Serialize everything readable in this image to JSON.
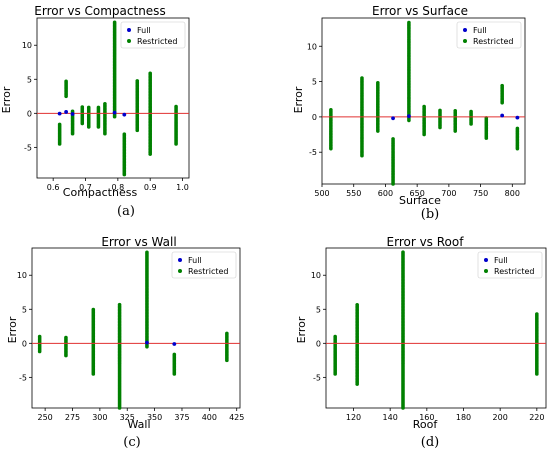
{
  "chart_data": [
    {
      "type": "scatter",
      "panel_label": "(a)",
      "title": "Error vs Compactness",
      "xlabel": "Compactness",
      "ylabel": "Error",
      "xlim": [
        0.55,
        1.02
      ],
      "ylim": [
        -9.5,
        14
      ],
      "xticks": [
        0.6,
        0.7,
        0.8,
        0.9,
        1.0
      ],
      "xtick_labels": [
        "0.6",
        "0.7",
        "0.8",
        "0.9",
        "1.0"
      ],
      "yticks": [
        -5,
        0,
        5,
        10
      ],
      "ytick_labels": [
        "-5",
        "0",
        "5",
        "10"
      ],
      "legend": {
        "position": "top-right",
        "entries": [
          "Full",
          "Restricted"
        ]
      },
      "series": [
        {
          "name": "Full",
          "color": "#0000cc",
          "points": [
            [
              0.62,
              -0.05
            ],
            [
              0.64,
              0.2
            ],
            [
              0.66,
              -0.1
            ],
            [
              0.79,
              0.1
            ],
            [
              0.82,
              -0.2
            ]
          ]
        },
        {
          "name": "Restricted",
          "color": "#008000",
          "columns": [
            {
              "x": 0.62,
              "min": -4.5,
              "max": -1.5
            },
            {
              "x": 0.64,
              "min": 2.5,
              "max": 4.8
            },
            {
              "x": 0.66,
              "min": -3.0,
              "max": 0.5
            },
            {
              "x": 0.69,
              "min": -1.5,
              "max": 1.0
            },
            {
              "x": 0.71,
              "min": -2.0,
              "max": 1.0
            },
            {
              "x": 0.74,
              "min": -2.0,
              "max": 1.0
            },
            {
              "x": 0.76,
              "min": -3.0,
              "max": 1.5
            },
            {
              "x": 0.79,
              "min": -0.5,
              "max": 13.5
            },
            {
              "x": 0.82,
              "min": -9.0,
              "max": -3.0
            },
            {
              "x": 0.86,
              "min": -2.5,
              "max": 4.8
            },
            {
              "x": 0.9,
              "min": -6.0,
              "max": 6.0
            },
            {
              "x": 0.98,
              "min": -4.5,
              "max": 1.0
            }
          ]
        }
      ],
      "reference_line": {
        "y": 0,
        "color": "#e03030"
      }
    },
    {
      "type": "scatter",
      "panel_label": "(b)",
      "title": "Error vs Surface",
      "xlabel": "Surface",
      "ylabel": "Error",
      "xlim": [
        500,
        820
      ],
      "ylim": [
        -9.5,
        14
      ],
      "xticks": [
        500,
        550,
        600,
        650,
        700,
        750,
        800
      ],
      "xtick_labels": [
        "500",
        "550",
        "600",
        "650",
        "700",
        "750",
        "800"
      ],
      "yticks": [
        -5,
        0,
        5,
        10
      ],
      "ytick_labels": [
        "-5",
        "0",
        "5",
        "10"
      ],
      "legend": {
        "position": "top-right",
        "entries": [
          "Full",
          "Restricted"
        ]
      },
      "series": [
        {
          "name": "Full",
          "color": "#0000cc",
          "points": [
            [
              612,
              -0.2
            ],
            [
              637,
              0.1
            ],
            [
              784,
              0.2
            ],
            [
              808,
              -0.1
            ]
          ]
        },
        {
          "name": "Restricted",
          "color": "#008000",
          "columns": [
            {
              "x": 514,
              "min": -4.5,
              "max": 1.0
            },
            {
              "x": 563,
              "min": -5.5,
              "max": 5.5
            },
            {
              "x": 588,
              "min": -2.0,
              "max": 5.0
            },
            {
              "x": 612,
              "min": -9.5,
              "max": -3.0
            },
            {
              "x": 637,
              "min": -0.5,
              "max": 13.5
            },
            {
              "x": 661,
              "min": -2.5,
              "max": 1.5
            },
            {
              "x": 686,
              "min": -1.5,
              "max": 1.0
            },
            {
              "x": 710,
              "min": -2.0,
              "max": 1.0
            },
            {
              "x": 735,
              "min": -1.0,
              "max": 0.8
            },
            {
              "x": 759,
              "min": -3.0,
              "max": 0.0
            },
            {
              "x": 784,
              "min": 2.0,
              "max": 4.5
            },
            {
              "x": 808,
              "min": -4.5,
              "max": -1.5
            }
          ]
        }
      ],
      "reference_line": {
        "y": 0,
        "color": "#e03030"
      }
    },
    {
      "type": "scatter",
      "panel_label": "(c)",
      "title": "Error vs Wall",
      "xlabel": "Wall",
      "ylabel": "Error",
      "xlim": [
        238,
        428
      ],
      "ylim": [
        -9.5,
        14
      ],
      "xticks": [
        250,
        275,
        300,
        325,
        350,
        375,
        400,
        425
      ],
      "xtick_labels": [
        "250",
        "275",
        "300",
        "325",
        "350",
        "375",
        "400",
        "425"
      ],
      "yticks": [
        -5,
        0,
        5,
        10
      ],
      "ytick_labels": [
        "-5",
        "0",
        "5",
        "10"
      ],
      "legend": {
        "position": "top-right",
        "entries": [
          "Full",
          "Restricted"
        ]
      },
      "series": [
        {
          "name": "Full",
          "color": "#0000cc",
          "points": [
            [
              343,
              0.1
            ],
            [
              368,
              -0.1
            ]
          ]
        },
        {
          "name": "Restricted",
          "color": "#008000",
          "columns": [
            {
              "x": 245,
              "min": -1.2,
              "max": 1.0
            },
            {
              "x": 269,
              "min": -1.8,
              "max": 1.0
            },
            {
              "x": 294,
              "min": -4.5,
              "max": 5.0
            },
            {
              "x": 318,
              "min": -9.5,
              "max": 5.8
            },
            {
              "x": 343,
              "min": -0.5,
              "max": 13.5
            },
            {
              "x": 368,
              "min": -4.5,
              "max": -1.5
            },
            {
              "x": 416,
              "min": -2.5,
              "max": 1.5
            }
          ]
        }
      ],
      "reference_line": {
        "y": 0,
        "color": "#e03030"
      }
    },
    {
      "type": "scatter",
      "panel_label": "(d)",
      "title": "Error vs Roof",
      "xlabel": "Roof",
      "ylabel": "Error",
      "xlim": [
        105,
        225
      ],
      "ylim": [
        -9.5,
        14
      ],
      "xticks": [
        120,
        140,
        160,
        180,
        200,
        220
      ],
      "xtick_labels": [
        "120",
        "140",
        "160",
        "180",
        "200",
        "220"
      ],
      "yticks": [
        -5,
        0,
        5,
        10
      ],
      "ytick_labels": [
        "-5",
        "0",
        "5",
        "10"
      ],
      "legend": {
        "position": "top-right",
        "entries": [
          "Full",
          "Restricted"
        ]
      },
      "series": [
        {
          "name": "Full",
          "color": "#0000cc",
          "points": []
        },
        {
          "name": "Restricted",
          "color": "#008000",
          "columns": [
            {
              "x": 110,
              "min": -4.5,
              "max": 1.0
            },
            {
              "x": 122,
              "min": -6.0,
              "max": 5.8
            },
            {
              "x": 147,
              "min": -9.5,
              "max": 13.5
            },
            {
              "x": 220,
              "min": -4.5,
              "max": 4.5
            }
          ]
        }
      ],
      "reference_line": {
        "y": 0,
        "color": "#e03030"
      }
    }
  ]
}
